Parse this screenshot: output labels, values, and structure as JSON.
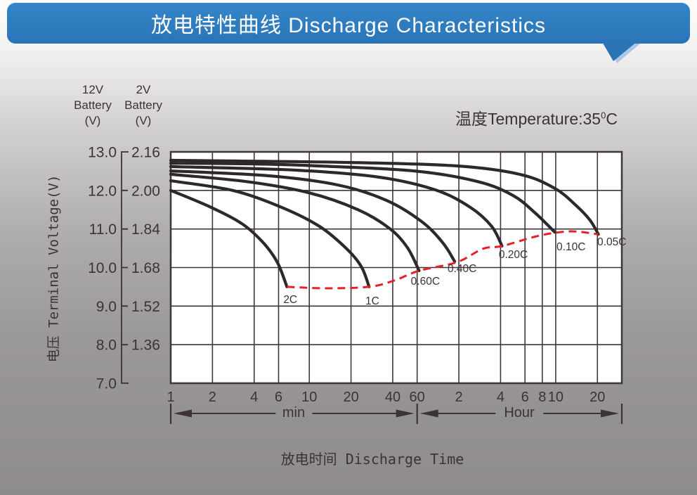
{
  "header": {
    "title": "放电特性曲线 Discharge Characteristics"
  },
  "labels": {
    "temperature_prefix": "温度Temperature:35",
    "temperature_sup": "0",
    "temperature_unit": "C",
    "y_left_header": [
      "12V",
      "Battery",
      "(V)"
    ],
    "y_right_header": [
      "2V",
      "Battery",
      "(V)"
    ],
    "y_axis_title": "电压 Terminal Voltage(V)",
    "x_axis_title": "放电时间 Discharge Time",
    "min_range": "min",
    "hour_range": "Hour"
  },
  "chart_data": {
    "type": "line",
    "title": "放电特性曲线 Discharge Characteristics",
    "x_axis": {
      "scale": "log",
      "unit": "minutes",
      "range": [
        1,
        1800
      ],
      "min_ticks": [
        {
          "label": "1",
          "t": 1
        },
        {
          "label": "2",
          "t": 2
        },
        {
          "label": "4",
          "t": 4
        },
        {
          "label": "6",
          "t": 6
        },
        {
          "label": "10",
          "t": 10
        },
        {
          "label": "20",
          "t": 20
        },
        {
          "label": "40",
          "t": 40
        },
        {
          "label": "60",
          "t": 60
        }
      ],
      "hour_ticks": [
        {
          "label": "2",
          "t": 120
        },
        {
          "label": "4",
          "t": 240
        },
        {
          "label": "6",
          "t": 360
        },
        {
          "label": "8",
          "t": 480
        },
        {
          "label": "10",
          "t": 600
        },
        {
          "label": "20",
          "t": 1200
        }
      ]
    },
    "y_axis": {
      "left_ticks": [
        "13.0",
        "12.0",
        "11.0",
        "10.0",
        "9.0",
        "8.0",
        "7.0"
      ],
      "right_ticks": [
        "2.16",
        "2.00",
        "1.84",
        "1.68",
        "1.52",
        "1.36"
      ],
      "right_values": [
        2.16,
        2.0,
        1.84,
        1.68,
        1.52,
        1.36,
        1.2
      ],
      "range_2v": [
        1.2,
        2.16
      ],
      "range_12v": [
        7.0,
        13.0
      ]
    },
    "colors": {
      "curve": "#2f282a",
      "grid": "#3c3739",
      "text": "#3b3335",
      "envelope": "#e62129",
      "plot_bg": "#ffffff"
    },
    "series": [
      {
        "name": "0.05C",
        "label_anchor": [
          1197,
          1.787
        ],
        "points": [
          [
            1,
            2.125
          ],
          [
            3,
            2.122
          ],
          [
            20,
            2.116
          ],
          [
            115,
            2.102
          ],
          [
            330,
            2.067
          ],
          [
            593,
            2.008
          ],
          [
            840,
            1.938
          ],
          [
            1060,
            1.877
          ],
          [
            1219,
            1.818
          ]
        ]
      },
      {
        "name": "0.10C",
        "label_anchor": [
          608,
          1.766
        ],
        "points": [
          [
            1,
            2.113
          ],
          [
            4,
            2.11
          ],
          [
            11.2,
            2.102
          ],
          [
            57,
            2.081
          ],
          [
            164,
            2.037
          ],
          [
            295,
            1.979
          ],
          [
            427,
            1.906
          ],
          [
            590,
            1.827
          ]
        ]
      },
      {
        "name": "0.20C",
        "label_anchor": [
          233,
          1.734
        ],
        "points": [
          [
            1,
            2.099
          ],
          [
            8,
            2.084
          ],
          [
            32,
            2.055
          ],
          [
            81.5,
            2.002
          ],
          [
            146,
            1.929
          ],
          [
            207,
            1.851
          ],
          [
            246,
            1.769
          ]
        ]
      },
      {
        "name": "0.40C",
        "label_anchor": [
          99.5,
          1.676
        ],
        "points": [
          [
            1,
            2.081
          ],
          [
            5,
            2.061
          ],
          [
            16,
            2.023
          ],
          [
            36,
            1.959
          ],
          [
            64.6,
            1.871
          ],
          [
            91.6,
            1.784
          ],
          [
            112,
            1.705
          ]
        ]
      },
      {
        "name": "0.60C",
        "label_anchor": [
          54,
          1.623
        ],
        "points": [
          [
            1,
            2.067
          ],
          [
            3.5,
            2.037
          ],
          [
            10,
            1.99
          ],
          [
            22.5,
            1.92
          ],
          [
            38,
            1.842
          ],
          [
            51,
            1.763
          ],
          [
            62,
            1.667
          ]
        ]
      },
      {
        "name": "1C",
        "label_anchor": [
          25.4,
          1.541
        ],
        "points": [
          [
            1,
            2.04
          ],
          [
            2.8,
            2.0
          ],
          [
            6.3,
            1.93
          ],
          [
            11.9,
            1.85
          ],
          [
            18.9,
            1.754
          ],
          [
            23.9,
            1.681
          ],
          [
            27,
            1.6
          ]
        ]
      },
      {
        "name": "2C",
        "label_anchor": [
          6.5,
          1.547
        ],
        "points": [
          [
            1,
            2.0
          ],
          [
            1.95,
            1.93
          ],
          [
            3.3,
            1.86
          ],
          [
            4.7,
            1.78
          ],
          [
            5.9,
            1.7
          ],
          [
            6.9,
            1.6
          ]
        ]
      }
    ],
    "envelope": {
      "style": "dashed",
      "color": "#e62129",
      "points": [
        [
          6.9,
          1.6
        ],
        [
          13.3,
          1.594
        ],
        [
          27,
          1.6
        ],
        [
          41,
          1.626
        ],
        [
          62,
          1.667
        ],
        [
          116,
          1.702
        ],
        [
          179,
          1.758
        ],
        [
          246,
          1.769
        ],
        [
          418,
          1.807
        ],
        [
          593,
          1.824
        ],
        [
          815,
          1.83
        ],
        [
          1219,
          1.818
        ]
      ]
    }
  }
}
